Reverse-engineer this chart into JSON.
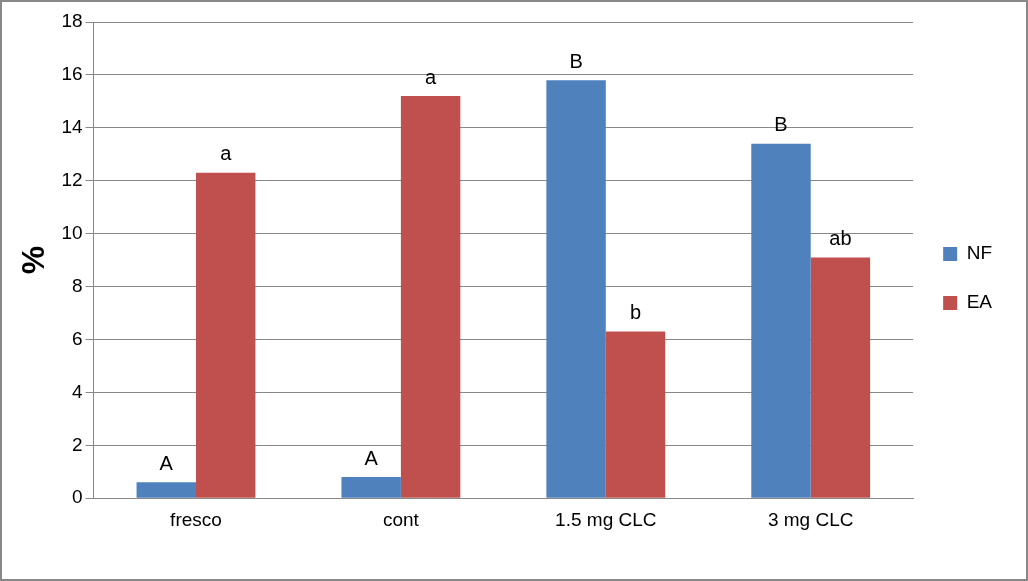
{
  "chart_data": {
    "type": "bar",
    "ylabel": "%",
    "categories": [
      "fresco",
      "cont",
      "1.5 mg CLC",
      "3 mg CLC"
    ],
    "series": [
      {
        "name": "NF",
        "color": "#4f81bd",
        "values": [
          0.6,
          0.8,
          15.8,
          13.4
        ]
      },
      {
        "name": "EA",
        "color": "#c0504d",
        "values": [
          12.3,
          15.2,
          6.3,
          9.1
        ]
      }
    ],
    "ylim": [
      0,
      18
    ],
    "yticks": [
      0,
      2,
      4,
      6,
      8,
      10,
      12,
      14,
      16,
      18
    ],
    "grid": "y",
    "legend": "right",
    "annotations": [
      {
        "text": "A",
        "x": "fresco",
        "y": 0.6
      },
      {
        "text": "a",
        "x": "fresco",
        "y": 12.3
      },
      {
        "text": "A",
        "x": "cont",
        "y": 0.8
      },
      {
        "text": "a",
        "x": "cont",
        "y": 15.2
      },
      {
        "text": "B",
        "x": "1.5 mg CLC",
        "y": 15.8
      },
      {
        "text": "b",
        "x": "1.5 mg CLC",
        "y": 6.3
      },
      {
        "text": "B",
        "x": "3 mg CLC",
        "y": 13.4
      },
      {
        "text": "ab",
        "x": "3 mg CLC",
        "y": 9.1
      }
    ]
  }
}
